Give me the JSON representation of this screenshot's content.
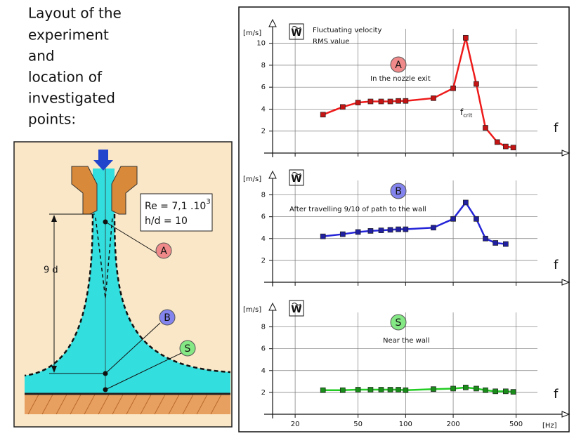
{
  "diagram": {
    "intro": [
      "Layout of the",
      "experiment",
      "and",
      "location of",
      "investigated",
      "points:"
    ],
    "re": "Re = 7,1 .10",
    "re_exp": "3",
    "hd": "h/d = 10",
    "dist": "9 d",
    "points": [
      "A",
      "B",
      "S"
    ]
  },
  "chart_data": [
    {
      "type": "line",
      "y_label": "[m/s]",
      "w_label": "W",
      "subtitle": [
        "Fluctuating velocity",
        "RMS value"
      ],
      "point_label": "A",
      "annotation": "In the nozzle exit",
      "fcrit": {
        "main": "f",
        "sub": "crit"
      },
      "f_label": "f",
      "xscale": "log",
      "xlim": [
        14.4,
        928
      ],
      "xticks": [
        20,
        50,
        100,
        200,
        500
      ],
      "show_xtick_labels": false,
      "ylim": [
        0,
        11
      ],
      "yticks": [
        2,
        4,
        6,
        8,
        10
      ],
      "grid": true,
      "color": "#ee1a1a",
      "marker_color": "#c41414",
      "badge_color": "#f08a8a",
      "x": [
        30,
        40,
        50,
        60,
        70,
        80,
        90,
        100,
        150,
        200,
        240,
        280,
        320,
        380,
        430,
        480
      ],
      "values": [
        3.5,
        4.2,
        4.6,
        4.7,
        4.7,
        4.7,
        4.75,
        4.75,
        5.0,
        5.9,
        10.5,
        6.3,
        2.3,
        1.0,
        0.6,
        0.5
      ]
    },
    {
      "type": "line",
      "y_label": "[m/s]",
      "w_label": "W",
      "point_label": "B",
      "annotation": "After travelling 9/10 of path to the wall",
      "f_label": "f",
      "xscale": "log",
      "xlim": [
        14.4,
        928
      ],
      "xticks": [
        20,
        50,
        100,
        200,
        500
      ],
      "show_xtick_labels": false,
      "ylim": [
        0,
        9
      ],
      "yticks": [
        2,
        4,
        6,
        8
      ],
      "grid": true,
      "color": "#2424d8",
      "marker_color": "#2020a0",
      "badge_color": "#8484ee",
      "x": [
        30,
        40,
        50,
        60,
        70,
        80,
        90,
        100,
        150,
        200,
        240,
        280,
        320,
        370,
        430
      ],
      "values": [
        4.2,
        4.4,
        4.6,
        4.7,
        4.75,
        4.8,
        4.85,
        4.85,
        5.0,
        5.8,
        7.3,
        5.8,
        4.0,
        3.6,
        3.5
      ]
    },
    {
      "type": "line",
      "y_label": "[m/s]",
      "w_label": "W",
      "point_label": "S",
      "annotation": "Near the wall",
      "f_label": "f",
      "x_unit": "[Hz]",
      "xscale": "log",
      "xlim": [
        14.4,
        928
      ],
      "xticks": [
        20,
        50,
        100,
        200,
        500
      ],
      "show_xtick_labels": true,
      "ylim": [
        0,
        9
      ],
      "yticks": [
        2,
        4,
        6,
        8
      ],
      "grid": true,
      "color": "#22cc22",
      "marker_color": "#1a8c1a",
      "badge_color": "#84e884",
      "x": [
        30,
        40,
        50,
        60,
        70,
        80,
        90,
        100,
        150,
        200,
        240,
        280,
        320,
        370,
        430,
        480
      ],
      "values": [
        2.2,
        2.2,
        2.25,
        2.25,
        2.25,
        2.25,
        2.25,
        2.2,
        2.3,
        2.35,
        2.45,
        2.35,
        2.2,
        2.1,
        2.1,
        2.05
      ]
    }
  ]
}
